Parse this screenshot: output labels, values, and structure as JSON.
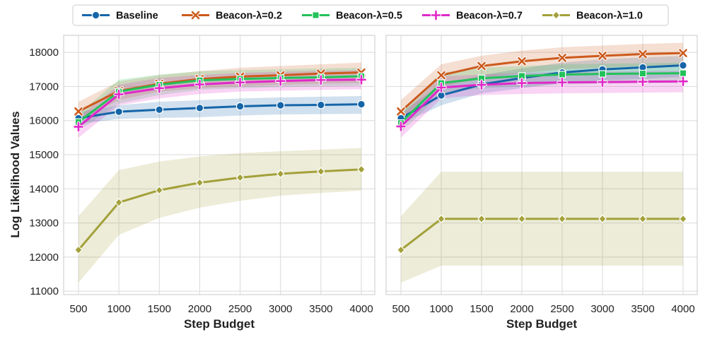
{
  "chart_data": {
    "type": "line",
    "legend": {
      "placement": "top-center",
      "entries": [
        "Baseline",
        "Beacon-λ=0.2",
        "Beacon-λ=0.5",
        "Beacon-λ=0.7",
        "Beacon-λ=1.0"
      ]
    },
    "ylabel": "Log Likelihood Values",
    "xlabel": "Step Budget",
    "ylim": [
      10900,
      18500
    ],
    "yticks": [
      11000,
      12000,
      13000,
      14000,
      15000,
      16000,
      17000,
      18000
    ],
    "x": [
      500,
      1000,
      1500,
      2000,
      2500,
      3000,
      3500,
      4000
    ],
    "colors": {
      "baseline": "#1565a8",
      "l02": "#cc5a1c",
      "l05": "#22c25a",
      "l07": "#e028c8",
      "l10": "#a3a13a"
    },
    "panels": [
      {
        "id": "left",
        "series": [
          {
            "name": "Baseline",
            "key": "baseline",
            "marker": "circle",
            "values": [
              16070,
              16260,
              16320,
              16370,
              16420,
              16450,
              16460,
              16480
            ],
            "lower": [
              15900,
              16050,
              16080,
              16100,
              16150,
              16180,
              16190,
              16200
            ],
            "upper": [
              16250,
              16450,
              16550,
              16600,
              16650,
              16680,
              16700,
              16720
            ]
          },
          {
            "name": "Beacon-λ=0.2",
            "key": "l02",
            "marker": "x",
            "values": [
              16270,
              16870,
              17080,
              17220,
              17290,
              17330,
              17380,
              17410
            ],
            "lower": [
              16000,
              16600,
              16850,
              16950,
              17000,
              17050,
              17080,
              17100
            ],
            "upper": [
              16550,
              17150,
              17330,
              17450,
              17550,
              17600,
              17650,
              17700
            ]
          },
          {
            "name": "Beacon-λ=0.5",
            "key": "l05",
            "marker": "square",
            "values": [
              15960,
              16850,
              17050,
              17180,
              17220,
              17250,
              17270,
              17300
            ],
            "lower": [
              15700,
              16500,
              16750,
              16900,
              16950,
              16980,
              17000,
              17020
            ],
            "upper": [
              16200,
              17200,
              17350,
              17450,
              17480,
              17500,
              17530,
              17550
            ]
          },
          {
            "name": "Beacon-λ=0.7",
            "key": "l07",
            "marker": "plus",
            "values": [
              15820,
              16770,
              16950,
              17060,
              17120,
              17160,
              17190,
              17200
            ],
            "lower": [
              15500,
              16450,
              16650,
              16780,
              16850,
              16880,
              16900,
              16920
            ],
            "upper": [
              16100,
              17050,
              17250,
              17340,
              17400,
              17430,
              17460,
              17480
            ]
          },
          {
            "name": "Beacon-λ=1.0",
            "key": "l10",
            "marker": "diamond",
            "values": [
              12210,
              13600,
              13960,
              14180,
              14330,
              14440,
              14510,
              14570
            ],
            "lower": [
              11250,
              12650,
              13150,
              13450,
              13650,
              13800,
              13880,
              13950
            ],
            "upper": [
              13200,
              14550,
              14800,
              14950,
              15050,
              15100,
              15150,
              15200
            ]
          }
        ]
      },
      {
        "id": "right",
        "series": [
          {
            "name": "Baseline",
            "key": "baseline",
            "marker": "circle",
            "values": [
              16070,
              16740,
              17060,
              17250,
              17410,
              17500,
              17560,
              17620
            ],
            "lower": [
              15900,
              16450,
              16800,
              16950,
              17100,
              17180,
              17220,
              17280
            ],
            "upper": [
              16250,
              17050,
              17330,
              17530,
              17700,
              17800,
              17850,
              17900
            ]
          },
          {
            "name": "Beacon-λ=0.2",
            "key": "l02",
            "marker": "x",
            "values": [
              16270,
              17330,
              17600,
              17740,
              17840,
              17900,
              17950,
              17980
            ],
            "lower": [
              15950,
              17000,
              17250,
              17400,
              17500,
              17550,
              17600,
              17620
            ],
            "upper": [
              16600,
              17650,
              17900,
              18050,
              18150,
              18200,
              18250,
              18280
            ]
          },
          {
            "name": "Beacon-λ=0.5",
            "key": "l05",
            "marker": "square",
            "values": [
              15930,
              17100,
              17240,
              17310,
              17350,
              17370,
              17380,
              17390
            ],
            "lower": [
              15650,
              16800,
              16950,
              17000,
              17050,
              17080,
              17100,
              17100
            ],
            "upper": [
              16250,
              17400,
              17550,
              17600,
              17650,
              17670,
              17680,
              17700
            ]
          },
          {
            "name": "Beacon-λ=0.7",
            "key": "l07",
            "marker": "plus",
            "values": [
              15830,
              16970,
              17050,
              17100,
              17120,
              17130,
              17140,
              17150
            ],
            "lower": [
              15500,
              16650,
              16750,
              16780,
              16800,
              16810,
              16820,
              16830
            ],
            "upper": [
              16150,
              17300,
              17350,
              17400,
              17420,
              17430,
              17450,
              17460
            ]
          },
          {
            "name": "Beacon-λ=1.0",
            "key": "l10",
            "marker": "diamond",
            "values": [
              12210,
              13120,
              13120,
              13120,
              13120,
              13120,
              13120,
              13120
            ],
            "lower": [
              11250,
              11750,
              11750,
              11750,
              11750,
              11750,
              11750,
              11750
            ],
            "upper": [
              13200,
              14500,
              14500,
              14500,
              14500,
              14500,
              14500,
              14500
            ]
          }
        ]
      }
    ]
  }
}
